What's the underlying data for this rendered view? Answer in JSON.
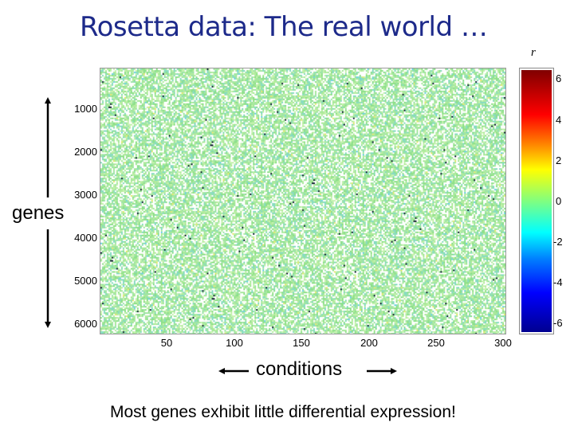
{
  "title": "Rosetta data: The real world …",
  "colorbar_label": "r",
  "genes_label": "genes",
  "conditions_label": "conditions",
  "caption": "Most genes exhibit little differential expression!",
  "chart_data": {
    "type": "heatmap",
    "title": "",
    "xlabel": "conditions",
    "ylabel": "genes",
    "x_range": [
      1,
      300
    ],
    "y_range": [
      1,
      6300
    ],
    "x_ticks": [
      "50",
      "100",
      "150",
      "200",
      "250",
      "300"
    ],
    "y_ticks": [
      "1000",
      "2000",
      "3000",
      "4000",
      "5000",
      "6000"
    ],
    "colorbar": {
      "label": "r",
      "range": [
        -7,
        7
      ],
      "ticks": [
        "6",
        "4",
        "2",
        "0",
        "-2",
        "-4",
        "-6"
      ],
      "colormap": "jet"
    },
    "dominant_value": 0,
    "colors": {
      "background_cell": "#ffffff",
      "near_zero_green": "#8ee08a",
      "pale_green": "#c6f2b0",
      "outlier_dark": "#1a2a3a"
    }
  }
}
